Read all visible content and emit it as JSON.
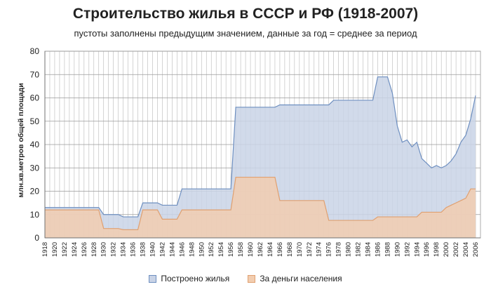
{
  "chart_data": {
    "type": "area",
    "title": "Строительство жилья в СССР и РФ (1918-2007)",
    "subtitle": "пустоты заполнены предыдущим значением,  данные за год = среднее за период",
    "ylabel": "млн.кв.метров общей площади",
    "xlabel": "",
    "ylim": [
      0,
      80
    ],
    "yticks": [
      0,
      10,
      20,
      30,
      40,
      50,
      60,
      70,
      80
    ],
    "xlim": [
      1918,
      2007
    ],
    "xticks": [
      1918,
      1920,
      1922,
      1924,
      1926,
      1928,
      1930,
      1932,
      1934,
      1936,
      1938,
      1940,
      1942,
      1944,
      1946,
      1948,
      1950,
      1952,
      1954,
      1956,
      1958,
      1960,
      1962,
      1964,
      1966,
      1968,
      1970,
      1972,
      1974,
      1976,
      1978,
      1980,
      1982,
      1984,
      1986,
      1988,
      1990,
      1992,
      1994,
      1996,
      1998,
      2000,
      2002,
      2004,
      2006
    ],
    "grid": true,
    "legend_position": "bottom",
    "series": [
      {
        "name": "Построено жилья",
        "color": "#6e8fc0",
        "fill": "#c9d3e6",
        "points": [
          [
            1918,
            13
          ],
          [
            1929,
            13
          ],
          [
            1930,
            10
          ],
          [
            1933,
            10
          ],
          [
            1934,
            9
          ],
          [
            1937,
            9
          ],
          [
            1938,
            15
          ],
          [
            1941,
            15
          ],
          [
            1942,
            14
          ],
          [
            1945,
            14
          ],
          [
            1946,
            21
          ],
          [
            1956,
            21
          ],
          [
            1957,
            56
          ],
          [
            1965,
            56
          ],
          [
            1966,
            57
          ],
          [
            1976,
            57
          ],
          [
            1977,
            59
          ],
          [
            1985,
            59
          ],
          [
            1986,
            69
          ],
          [
            1988,
            69
          ],
          [
            1989,
            62
          ],
          [
            1990,
            48
          ],
          [
            1991,
            41
          ],
          [
            1992,
            42
          ],
          [
            1993,
            39
          ],
          [
            1994,
            41
          ],
          [
            1995,
            34
          ],
          [
            1996,
            32
          ],
          [
            1997,
            30
          ],
          [
            1998,
            31
          ],
          [
            1999,
            30
          ],
          [
            2000,
            31
          ],
          [
            2001,
            33
          ],
          [
            2002,
            36
          ],
          [
            2003,
            41
          ],
          [
            2004,
            44
          ],
          [
            2005,
            51
          ],
          [
            2006,
            61
          ]
        ]
      },
      {
        "name": "За деньги населения",
        "color": "#e0a070",
        "fill": "#f2cdb0",
        "points": [
          [
            1918,
            12
          ],
          [
            1929,
            12
          ],
          [
            1930,
            4
          ],
          [
            1933,
            4
          ],
          [
            1934,
            3.5
          ],
          [
            1937,
            3.5
          ],
          [
            1938,
            12
          ],
          [
            1941,
            12
          ],
          [
            1942,
            8
          ],
          [
            1945,
            8
          ],
          [
            1946,
            12
          ],
          [
            1956,
            12
          ],
          [
            1957,
            26
          ],
          [
            1965,
            26
          ],
          [
            1966,
            16
          ],
          [
            1975,
            16
          ],
          [
            1976,
            7.5
          ],
          [
            1985,
            7.5
          ],
          [
            1986,
            9
          ],
          [
            1994,
            9
          ],
          [
            1995,
            11
          ],
          [
            1999,
            11
          ],
          [
            2000,
            13
          ],
          [
            2001,
            14
          ],
          [
            2002,
            15
          ],
          [
            2003,
            16
          ],
          [
            2004,
            17
          ],
          [
            2005,
            21
          ],
          [
            2006,
            21
          ]
        ]
      }
    ]
  }
}
